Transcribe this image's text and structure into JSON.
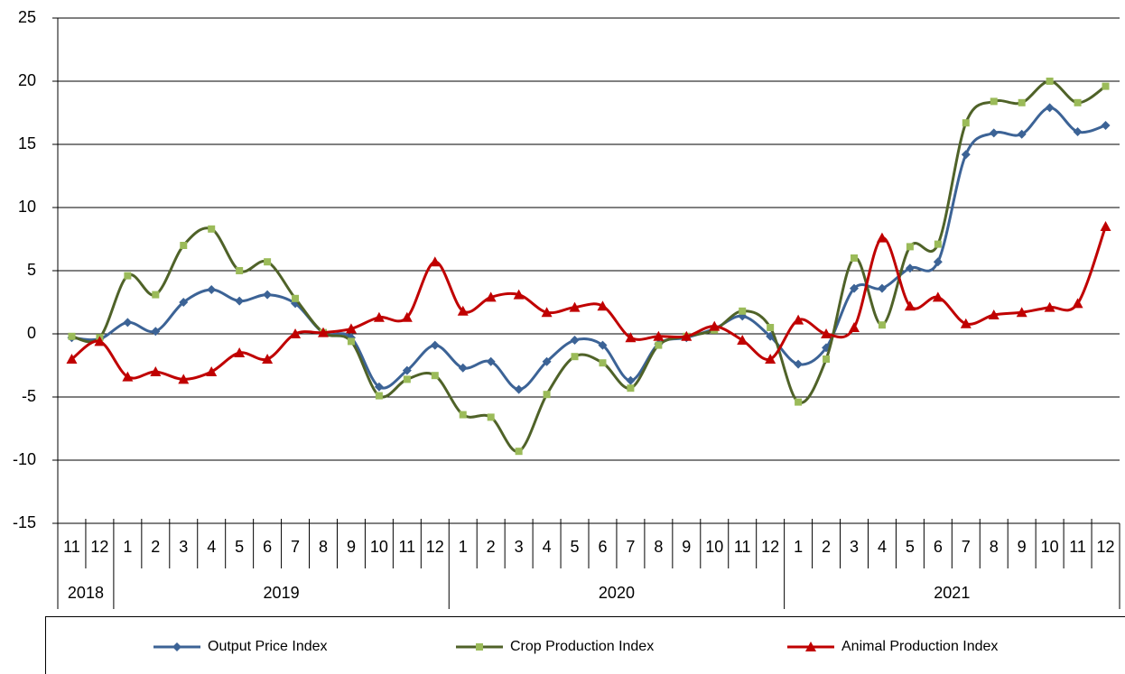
{
  "chart_data": {
    "type": "line",
    "categories": [
      "11",
      "12",
      "1",
      "2",
      "3",
      "4",
      "5",
      "6",
      "7",
      "8",
      "9",
      "10",
      "11",
      "12",
      "1",
      "2",
      "3",
      "4",
      "5",
      "6",
      "7",
      "8",
      "9",
      "10",
      "11",
      "12",
      "1",
      "2",
      "3",
      "4",
      "5",
      "6",
      "7",
      "8",
      "9",
      "10",
      "11",
      "12"
    ],
    "year_labels": [
      "2018",
      "2019",
      "2020",
      "2021"
    ],
    "series": [
      {
        "name": "Output Price Index",
        "color": "#3c6396",
        "marker": "diamond",
        "values": [
          -0.3,
          -0.4,
          0.9,
          0.2,
          2.5,
          3.5,
          2.6,
          3.1,
          2.4,
          0.1,
          -0.3,
          -4.2,
          -2.9,
          -0.9,
          -2.7,
          -2.2,
          -4.4,
          -2.2,
          -0.5,
          -0.9,
          -3.7,
          -0.8,
          -0.3,
          0.4,
          1.4,
          -0.2,
          -2.4,
          -1.1,
          3.6,
          3.6,
          5.2,
          5.7,
          14.2,
          15.9,
          15.8,
          17.9,
          16.0,
          16.5
        ]
      },
      {
        "name": "Crop Production Index",
        "color": "#4f6228",
        "marker": "square",
        "marker_color": "#9bbb59",
        "values": [
          -0.2,
          -0.3,
          4.6,
          3.1,
          7.0,
          8.3,
          5.0,
          5.7,
          2.8,
          0.1,
          -0.6,
          -4.9,
          -3.6,
          -3.3,
          -6.4,
          -6.6,
          -9.3,
          -4.8,
          -1.8,
          -2.3,
          -4.3,
          -0.9,
          -0.2,
          0.3,
          1.8,
          0.5,
          -5.4,
          -2.0,
          6.0,
          0.7,
          6.9,
          7.1,
          16.7,
          18.4,
          18.3,
          20.0,
          18.3,
          19.6
        ]
      },
      {
        "name": "Animal Production Index",
        "color": "#c00000",
        "marker": "triangle",
        "values": [
          -2.0,
          -0.6,
          -3.4,
          -3.0,
          -3.6,
          -3.0,
          -1.5,
          -2.0,
          0.0,
          0.1,
          0.4,
          1.3,
          1.3,
          5.7,
          1.8,
          2.9,
          3.1,
          1.7,
          2.1,
          2.2,
          -0.3,
          -0.2,
          -0.2,
          0.6,
          -0.5,
          -2.0,
          1.1,
          0.0,
          0.5,
          7.6,
          2.2,
          2.9,
          0.8,
          1.5,
          1.7,
          2.1,
          2.4,
          8.5
        ]
      }
    ],
    "ylim": [
      -15,
      25
    ],
    "yticks": [
      -15,
      -10,
      -5,
      0,
      5,
      10,
      15,
      20,
      25
    ],
    "grid": true,
    "smooth": true,
    "legend": "bottom"
  }
}
